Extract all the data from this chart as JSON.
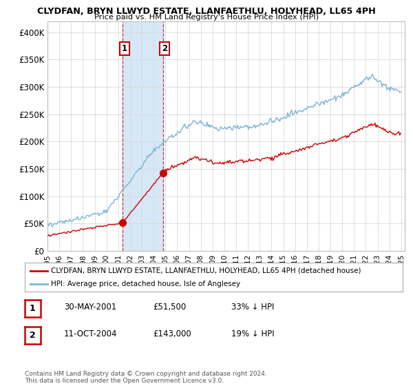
{
  "title": "CLYDFAN, BRYN LLWYD ESTATE, LLANFAETHLU, HOLYHEAD, LL65 4PH",
  "subtitle": "Price paid vs. HM Land Registry's House Price Index (HPI)",
  "legend_line1": "CLYDFAN, BRYN LLWYD ESTATE, LLANFAETHLU, HOLYHEAD, LL65 4PH (detached house)",
  "legend_line2": "HPI: Average price, detached house, Isle of Anglesey",
  "footnote": "Contains HM Land Registry data © Crown copyright and database right 2024.\nThis data is licensed under the Open Government Licence v3.0.",
  "sale1_label": "1",
  "sale1_date": "30-MAY-2001",
  "sale1_price": "£51,500",
  "sale1_hpi": "33% ↓ HPI",
  "sale2_label": "2",
  "sale2_date": "11-OCT-2004",
  "sale2_price": "£143,000",
  "sale2_hpi": "19% ↓ HPI",
  "hpi_color": "#7ab3d4",
  "sale_color": "#cc0000",
  "marker_color": "#cc0000",
  "highlight_color": "#d6e8f7",
  "ylim": [
    0,
    420000
  ],
  "yticks": [
    0,
    50000,
    100000,
    150000,
    200000,
    250000,
    300000,
    350000,
    400000
  ],
  "ytick_labels": [
    "£0",
    "£50K",
    "£100K",
    "£150K",
    "£200K",
    "£250K",
    "£300K",
    "£350K",
    "£400K"
  ],
  "sale1_time": 2001.37,
  "sale2_time": 2004.79,
  "sale1_price_val": 51500,
  "sale2_price_val": 143000
}
